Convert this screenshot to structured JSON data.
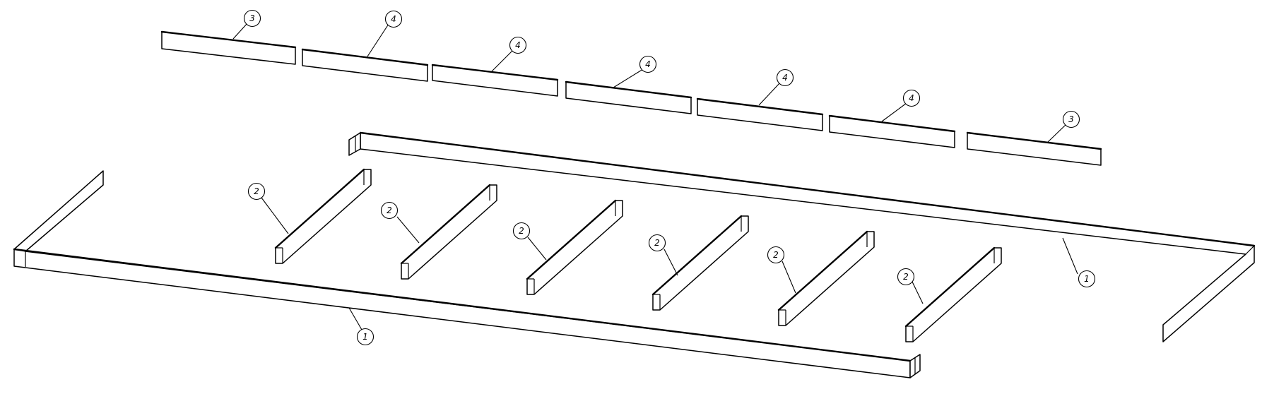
{
  "diagram": {
    "balloons": [
      {
        "id": "b1",
        "label": "3"
      },
      {
        "id": "b2",
        "label": "4"
      },
      {
        "id": "b3",
        "label": "4"
      },
      {
        "id": "b4",
        "label": "4"
      },
      {
        "id": "b5",
        "label": "4"
      },
      {
        "id": "b6",
        "label": "4"
      },
      {
        "id": "b7",
        "label": "3"
      },
      {
        "id": "b8",
        "label": "2"
      },
      {
        "id": "b9",
        "label": "2"
      },
      {
        "id": "b10",
        "label": "2"
      },
      {
        "id": "b11",
        "label": "2"
      },
      {
        "id": "b12",
        "label": "2"
      },
      {
        "id": "b13",
        "label": "2"
      },
      {
        "id": "b14",
        "label": "1"
      },
      {
        "id": "b15",
        "label": "1"
      }
    ]
  }
}
